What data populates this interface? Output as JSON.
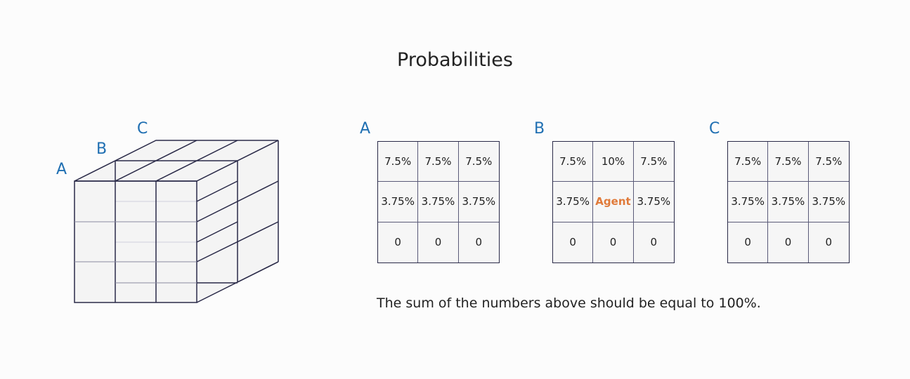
{
  "title": "Probabilities",
  "cube_labels": [
    "A",
    "B",
    "C"
  ],
  "grids": [
    {
      "label": "A",
      "cells": [
        "7.5%",
        "7.5%",
        "7.5%",
        "3.75%",
        "3.75%",
        "3.75%",
        "0",
        "0",
        "0"
      ]
    },
    {
      "label": "B",
      "cells": [
        "7.5%",
        "10%",
        "7.5%",
        "3.75%",
        "Agent",
        "3.75%",
        "0",
        "0",
        "0"
      ]
    },
    {
      "label": "C",
      "cells": [
        "7.5%",
        "7.5%",
        "7.5%",
        "3.75%",
        "3.75%",
        "3.75%",
        "0",
        "0",
        "0"
      ]
    }
  ],
  "agent_color": "#e07a3a",
  "label_color": "#1f6fb2",
  "note": "The sum of the numbers above should be equal to 100%."
}
